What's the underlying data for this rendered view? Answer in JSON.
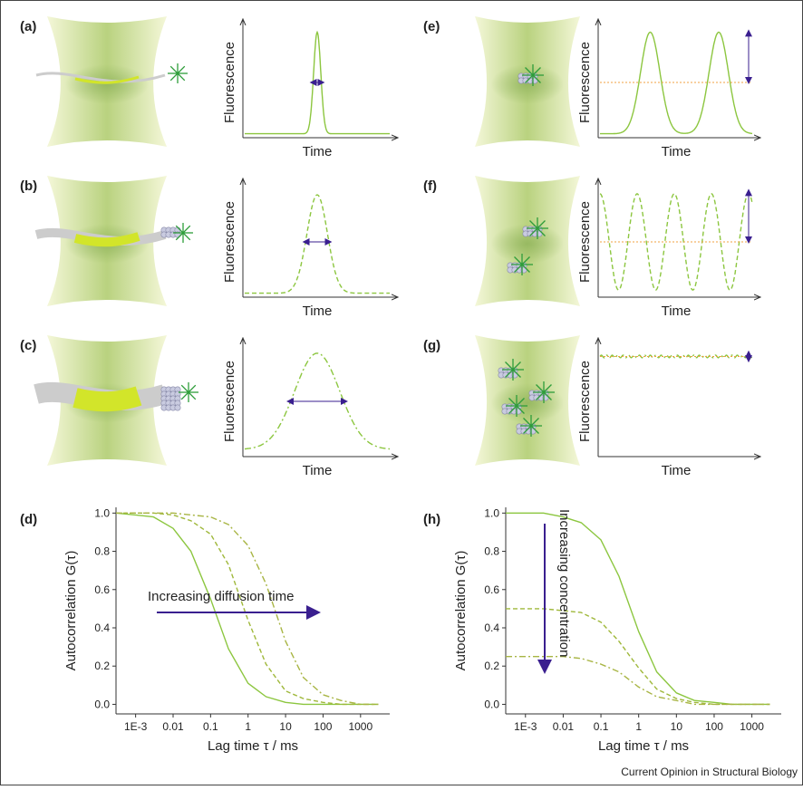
{
  "panels": [
    {
      "label": "(a)",
      "y_label": "Fluorescence",
      "x_label": "Time"
    },
    {
      "label": "(b)",
      "y_label": "Fluorescence",
      "x_label": "Time"
    },
    {
      "label": "(c)",
      "y_label": "Fluorescence",
      "x_label": "Time"
    },
    {
      "label": "(e)",
      "y_label": "Fluorescence",
      "x_label": "Time"
    },
    {
      "label": "(f)",
      "y_label": "Fluorescence",
      "x_label": "Time"
    },
    {
      "label": "(g)",
      "y_label": "Fluorescence",
      "x_label": "Time"
    }
  ],
  "plots": [
    {
      "label": "(d)",
      "type": "line",
      "y_label": "Autocorrelation G(τ)",
      "x_label": "Lag time τ / ms",
      "annotation": "Increasing diffusion time",
      "log_x": true,
      "xlim": [
        0.0003,
        6000
      ],
      "ylim": [
        -0.05,
        1.03
      ],
      "xticks": [
        {
          "value": 0.001,
          "label": "1E-3"
        },
        0.01,
        0.1,
        1,
        10,
        100,
        1000
      ],
      "yticks": [
        {
          "value": 0,
          "label": "0.0"
        },
        0.2,
        0.4,
        0.6,
        0.8,
        {
          "value": 1,
          "label": "1.0"
        }
      ],
      "x": [
        0.0003,
        0.001,
        0.003,
        0.01,
        0.03,
        0.1,
        0.3,
        1,
        3,
        10,
        30,
        100,
        300,
        1000,
        3000
      ],
      "series": [
        {
          "color": "#8cc63f",
          "style": "solid",
          "values": [
            1.0,
            0.99,
            0.98,
            0.92,
            0.8,
            0.55,
            0.29,
            0.11,
            0.04,
            0.01,
            0.0,
            0.0,
            0.0,
            0.0,
            0.0
          ]
        },
        {
          "color": "#9fb83a",
          "style": "dashed",
          "values": [
            1.0,
            1.0,
            1.0,
            0.99,
            0.96,
            0.89,
            0.73,
            0.44,
            0.21,
            0.07,
            0.03,
            0.01,
            0.0,
            0.0,
            0.0
          ]
        },
        {
          "color": "#a8b544",
          "style": "dashdot",
          "values": [
            1.0,
            1.0,
            1.0,
            1.0,
            0.99,
            0.98,
            0.94,
            0.83,
            0.63,
            0.33,
            0.14,
            0.05,
            0.02,
            0.0,
            0.0
          ]
        }
      ]
    },
    {
      "label": "(h)",
      "type": "line",
      "y_label": "Autocorrelation G(τ)",
      "x_label": "Lag time τ / ms",
      "annotation": "Increasing concentration",
      "log_x": true,
      "xlim": [
        0.0003,
        6000
      ],
      "ylim": [
        -0.05,
        1.03
      ],
      "xticks": [
        {
          "value": 0.001,
          "label": "1E-3"
        },
        0.01,
        0.1,
        1,
        10,
        100,
        1000
      ],
      "yticks": [
        {
          "value": 0,
          "label": "0.0"
        },
        0.2,
        0.4,
        0.6,
        0.8,
        {
          "value": 1,
          "label": "1.0"
        }
      ],
      "x": [
        0.0003,
        0.001,
        0.003,
        0.01,
        0.03,
        0.1,
        0.3,
        1,
        3,
        10,
        30,
        100,
        300,
        1000,
        3000
      ],
      "series": [
        {
          "color": "#8cc63f",
          "style": "solid",
          "values": [
            1.0,
            1.0,
            1.0,
            0.98,
            0.95,
            0.86,
            0.67,
            0.38,
            0.17,
            0.06,
            0.02,
            0.01,
            0.0,
            0.0,
            0.0
          ]
        },
        {
          "color": "#9fb83a",
          "style": "dashed",
          "values": [
            0.5,
            0.5,
            0.5,
            0.49,
            0.48,
            0.43,
            0.33,
            0.19,
            0.08,
            0.03,
            0.01,
            0.0,
            0.0,
            0.0,
            0.0
          ]
        },
        {
          "color": "#a8b544",
          "style": "dashdot",
          "values": [
            0.25,
            0.25,
            0.25,
            0.25,
            0.24,
            0.21,
            0.17,
            0.09,
            0.04,
            0.02,
            0.0,
            0.0,
            0.0,
            0.0,
            0.0
          ]
        }
      ]
    }
  ],
  "credit": "Current Opinion in Structural Biology"
}
